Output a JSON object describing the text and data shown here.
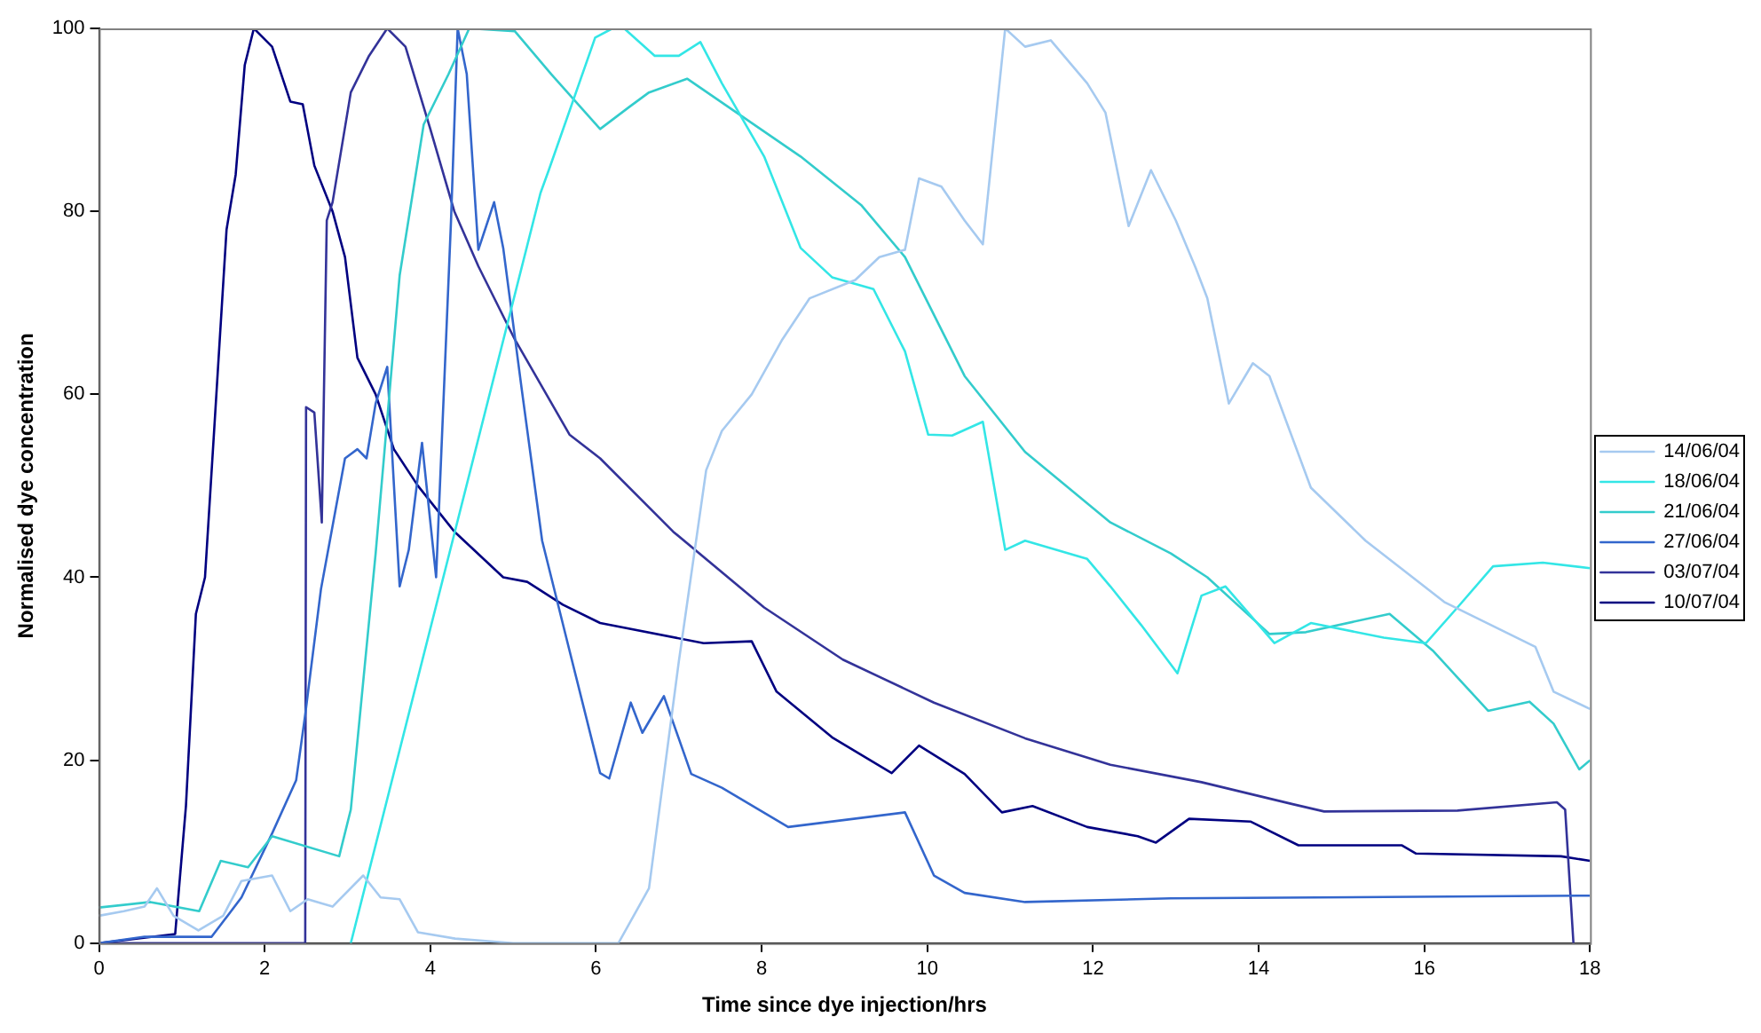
{
  "chart_data": {
    "type": "line",
    "xlabel": "Time since dye injection/hrs",
    "ylabel": "Normalised dye concentration",
    "xlim": [
      0,
      18
    ],
    "xticks": [
      0,
      2,
      4,
      6,
      8,
      10,
      12,
      14,
      16,
      18
    ],
    "ylim": [
      0,
      100
    ],
    "yticks": [
      0,
      20,
      40,
      60,
      80,
      100
    ],
    "grid": false,
    "legend": "right",
    "marker": "none",
    "line_style": "solid",
    "series": [
      {
        "name": "14/06/04",
        "color": "#a6caf0",
        "x": [
          0,
          0.3,
          0.55,
          0.7,
          0.9,
          1.2,
          1.5,
          1.72,
          2.09,
          2.31,
          2.52,
          2.82,
          3.19,
          3.4,
          3.63,
          3.85,
          4.3,
          5,
          6.27,
          6.64,
          7.0,
          7.33,
          7.52,
          7.88,
          8.25,
          8.58,
          9.13,
          9.42,
          9.73,
          9.9,
          10.17,
          10.45,
          10.67,
          10.94,
          11.18,
          11.49,
          11.93,
          12.15,
          12.43,
          12.7,
          13.0,
          13.24,
          13.38,
          13.64,
          13.93,
          14.13,
          14.63,
          15.29,
          16.24,
          17.34,
          17.56,
          18
        ],
        "values": [
          3,
          3.5,
          4,
          6,
          3,
          1.4,
          3,
          6.8,
          7.4,
          3.5,
          4.8,
          4,
          7.4,
          5,
          4.8,
          1.2,
          0.5,
          0,
          0,
          6,
          30.8,
          51.7,
          56,
          60,
          66,
          70.5,
          72.5,
          75,
          75.8,
          83.6,
          82.7,
          79,
          76.4,
          100,
          98,
          98.7,
          94,
          90.8,
          78.4,
          84.5,
          79,
          73.8,
          70.5,
          59,
          63.4,
          62,
          49.8,
          44,
          37.3,
          32.4,
          27.5,
          25.6
        ]
      },
      {
        "name": "18/06/04",
        "color": "#33e6e6",
        "x": [
          3.04,
          5.33,
          5.43,
          5.99,
          6.2,
          6.34,
          6.71,
          7.0,
          7.26,
          7.52,
          8.03,
          8.47,
          8.85,
          9.35,
          9.73,
          10.01,
          10.3,
          10.67,
          10.94,
          11.18,
          11.93,
          12.21,
          12.58,
          13.02,
          13.31,
          13.6,
          14.19,
          14.63,
          15.51,
          16.02,
          16.4,
          16.83,
          17.43,
          18
        ],
        "values": [
          0,
          82,
          84.5,
          99,
          100,
          100,
          97,
          97,
          98.5,
          94,
          86,
          76,
          72.8,
          71.5,
          64.7,
          55.6,
          55.5,
          57,
          43,
          44,
          42,
          39,
          34.8,
          29.5,
          38,
          39,
          32.8,
          35,
          33.4,
          32.8,
          36.7,
          41.2,
          41.6,
          41
        ]
      },
      {
        "name": "21/06/04",
        "color": "#33cccc",
        "x": [
          0,
          0.62,
          1.21,
          1.47,
          1.8,
          2.09,
          2.9,
          3.04,
          3.34,
          3.63,
          3.92,
          4.22,
          4.47,
          5.02,
          5.46,
          6.05,
          6.4,
          6.64,
          7.1,
          8.47,
          9.2,
          9.73,
          10.45,
          11.18,
          12.21,
          12.94,
          13.38,
          14.13,
          14.57,
          15.58,
          16.1,
          16.77,
          17.27,
          17.56,
          17.87,
          18
        ],
        "values": [
          3.9,
          4.5,
          3.5,
          9,
          8.3,
          11.7,
          9.5,
          14.6,
          42.6,
          73,
          89.5,
          95,
          100,
          99.7,
          95,
          89,
          91.4,
          93,
          94.5,
          86,
          80.7,
          75,
          62,
          53.7,
          46,
          42.6,
          40,
          33.8,
          34,
          36,
          32,
          25.4,
          26.4,
          24,
          19,
          20
        ]
      },
      {
        "name": "27/06/04",
        "color": "#3366cc",
        "x": [
          0,
          0.55,
          1.36,
          1.72,
          2.09,
          2.38,
          2.49,
          2.68,
          2.97,
          3.12,
          3.23,
          3.34,
          3.48,
          3.63,
          3.74,
          3.9,
          4.07,
          4.25,
          4.33,
          4.44,
          4.58,
          4.77,
          4.88,
          5.1,
          5.35,
          5.68,
          6.05,
          6.16,
          6.42,
          6.56,
          6.82,
          7.15,
          7.52,
          8.32,
          9.73,
          10.08,
          10.45,
          11.18,
          12.94,
          18
        ],
        "values": [
          0,
          0.7,
          0.7,
          5,
          12,
          17.8,
          25,
          38.7,
          53,
          54,
          53,
          59,
          63,
          39,
          43,
          54.7,
          40,
          79,
          100,
          95,
          75.8,
          81,
          76,
          60.8,
          44,
          32,
          18.6,
          18,
          26.3,
          23,
          27,
          18.5,
          17,
          12.7,
          14.3,
          7.4,
          5.5,
          4.5,
          4.9,
          5.2
        ]
      },
      {
        "name": "03/07/04",
        "color": "#333399",
        "x": [
          0,
          2.49,
          2.5,
          2.6,
          2.69,
          2.75,
          2.82,
          3.04,
          3.26,
          3.48,
          3.7,
          4.0,
          4.29,
          4.58,
          5.02,
          5.68,
          6.05,
          6.93,
          8.03,
          8.98,
          10.08,
          11.18,
          12.21,
          13.31,
          14.41,
          14.79,
          16.4,
          17.6,
          17.7,
          17.8
        ],
        "values": [
          0,
          0,
          58.6,
          58,
          46,
          79,
          81,
          93,
          97,
          100,
          98,
          89,
          80,
          74,
          66,
          55.6,
          53,
          45,
          36.7,
          31,
          26.3,
          22.4,
          19.5,
          17.6,
          15.2,
          14.4,
          14.5,
          15.4,
          14.6,
          0
        ]
      },
      {
        "name": "10/07/04",
        "color": "#000080",
        "x": [
          0,
          0.92,
          1.05,
          1.17,
          1.28,
          1.39,
          1.54,
          1.65,
          1.76,
          1.87,
          2.09,
          2.31,
          2.46,
          2.6,
          2.82,
          2.97,
          3.12,
          3.34,
          3.56,
          3.85,
          4.29,
          4.88,
          5.17,
          5.6,
          6.05,
          7.3,
          7.88,
          8.18,
          8.85,
          9.57,
          9.9,
          10.45,
          10.9,
          11.27,
          11.93,
          12.54,
          12.76,
          13.16,
          13.9,
          14.48,
          15.73,
          15.9,
          17.65,
          18
        ],
        "values": [
          0,
          1,
          15,
          36,
          40,
          56,
          78,
          84,
          96,
          100,
          98,
          92,
          91.7,
          85,
          80,
          75,
          64,
          60,
          54,
          50,
          45,
          40,
          39.5,
          37,
          35,
          32.8,
          33,
          27.5,
          22.5,
          18.6,
          21.6,
          18.5,
          14.3,
          15,
          12.7,
          11.7,
          11,
          13.6,
          13.3,
          10.7,
          10.7,
          9.8,
          9.5,
          9
        ]
      }
    ]
  }
}
